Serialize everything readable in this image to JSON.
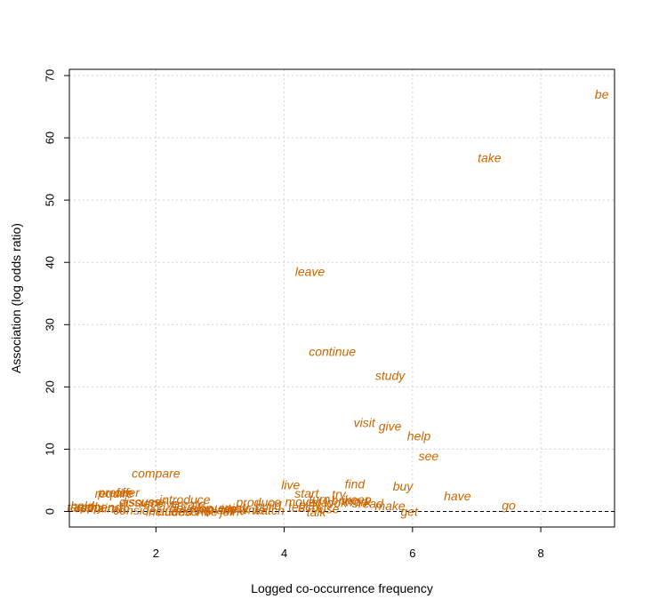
{
  "chart_data": {
    "type": "scatter",
    "title": "",
    "xlabel": "Logged co-occurrence frequency",
    "ylabel": "Association (log odds ratio)",
    "xlim": [
      0.65,
      9.15
    ],
    "ylim": [
      -2.5,
      71
    ],
    "xticks": [
      2,
      4,
      6,
      8
    ],
    "yticks": [
      0,
      10,
      20,
      30,
      40,
      50,
      60,
      70
    ],
    "grid": true,
    "reference_line_y": 0,
    "point_color": "#CC6600",
    "labeled_points": [
      {
        "label": "be",
        "x": 8.95,
        "y": 67.0
      },
      {
        "label": "take",
        "x": 7.2,
        "y": 56.8
      },
      {
        "label": "leave",
        "x": 4.4,
        "y": 38.5
      },
      {
        "label": "continue",
        "x": 4.75,
        "y": 25.7
      },
      {
        "label": "study",
        "x": 5.65,
        "y": 21.8
      },
      {
        "label": "visit",
        "x": 5.25,
        "y": 14.3
      },
      {
        "label": "give",
        "x": 5.65,
        "y": 13.7
      },
      {
        "label": "help",
        "x": 6.1,
        "y": 12.1
      },
      {
        "label": "see",
        "x": 6.25,
        "y": 8.9
      },
      {
        "label": "compare",
        "x": 2.0,
        "y": 6.1
      },
      {
        "label": "live",
        "x": 4.1,
        "y": 4.3
      },
      {
        "label": "find",
        "x": 5.1,
        "y": 4.4
      },
      {
        "label": "buy",
        "x": 5.85,
        "y": 4.1
      },
      {
        "label": "start",
        "x": 4.35,
        "y": 2.9
      },
      {
        "label": "try",
        "x": 4.85,
        "y": 2.8
      },
      {
        "label": "have",
        "x": 6.7,
        "y": 2.5
      },
      {
        "label": "go",
        "x": 7.5,
        "y": 1.0
      },
      {
        "label": "prefer",
        "x": 1.35,
        "y": 3.1
      },
      {
        "label": "offer",
        "x": 1.55,
        "y": 3.1
      },
      {
        "label": "introduce",
        "x": 2.45,
        "y": 1.9
      },
      {
        "label": "assume",
        "x": 1.8,
        "y": 1.5
      },
      {
        "label": "receive",
        "x": 2.05,
        "y": 1.3
      },
      {
        "label": "work",
        "x": 5.15,
        "y": 1.6
      },
      {
        "label": "look",
        "x": 4.8,
        "y": 1.4
      },
      {
        "label": "make",
        "x": 5.65,
        "y": 0.9
      },
      {
        "label": "talk",
        "x": 4.5,
        "y": -0.1
      },
      {
        "label": "get",
        "x": 5.95,
        "y": 0.0
      }
    ],
    "cluster_labels": [
      {
        "label": "require",
        "x": 1.35,
        "y": 2.9
      },
      {
        "label": "spend",
        "x": 1.2,
        "y": 0.7
      },
      {
        "label": "remain",
        "x": 1.05,
        "y": 0.6
      },
      {
        "label": "apply",
        "x": 0.95,
        "y": 0.8
      },
      {
        "label": "teach",
        "x": 0.85,
        "y": 0.7
      },
      {
        "label": "hold",
        "x": 0.85,
        "y": 0.9
      },
      {
        "label": "run",
        "x": 1.45,
        "y": 0.5
      },
      {
        "label": "consider",
        "x": 1.7,
        "y": 0.2
      },
      {
        "label": "discuss",
        "x": 1.75,
        "y": 1.6
      },
      {
        "label": "include",
        "x": 2.15,
        "y": 0.0
      },
      {
        "label": "attend",
        "x": 2.3,
        "y": 0.1
      },
      {
        "label": "create",
        "x": 2.5,
        "y": 1.2
      },
      {
        "label": "develop",
        "x": 2.55,
        "y": 0.6
      },
      {
        "label": "describe",
        "x": 2.6,
        "y": 0.0
      },
      {
        "label": "explain",
        "x": 2.9,
        "y": 0.3
      },
      {
        "label": "provide",
        "x": 2.95,
        "y": 0.4
      },
      {
        "label": "join",
        "x": 3.15,
        "y": 0.0
      },
      {
        "label": "enjoy",
        "x": 3.2,
        "y": 0.6
      },
      {
        "label": "ask",
        "x": 3.3,
        "y": 0.5
      },
      {
        "label": "write",
        "x": 3.5,
        "y": 0.3
      },
      {
        "label": "produce",
        "x": 3.6,
        "y": 1.5
      },
      {
        "label": "build",
        "x": 3.75,
        "y": 0.9
      },
      {
        "label": "watch",
        "x": 3.75,
        "y": 0.2
      },
      {
        "label": "move",
        "x": 4.25,
        "y": 1.6
      },
      {
        "label": "teach",
        "x": 4.3,
        "y": 0.7
      },
      {
        "label": "play",
        "x": 4.4,
        "y": 1.1
      },
      {
        "label": "turn",
        "x": 4.55,
        "y": 2.0
      },
      {
        "label": "stay",
        "x": 4.6,
        "y": 1.5
      },
      {
        "label": "bring",
        "x": 4.95,
        "y": 1.8
      },
      {
        "label": "use",
        "x": 4.7,
        "y": 0.4
      },
      {
        "label": "keep",
        "x": 5.15,
        "y": 1.9
      },
      {
        "label": "read",
        "x": 5.35,
        "y": 1.3
      }
    ]
  }
}
